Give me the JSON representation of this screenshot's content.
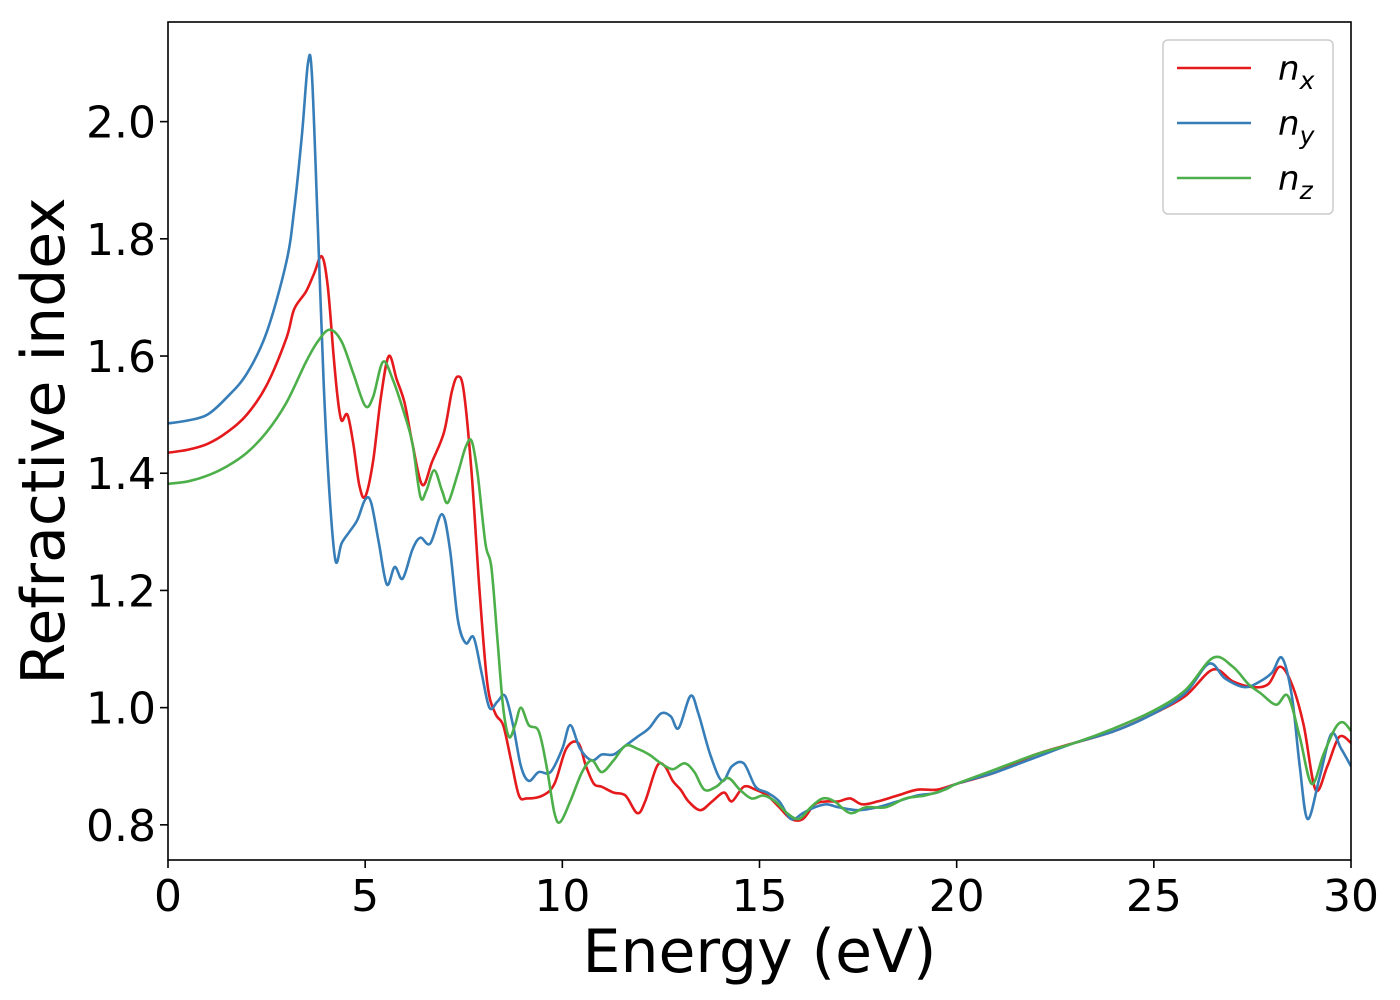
{
  "chart_data": {
    "type": "line",
    "xlabel": "Energy (eV)",
    "ylabel": "Refractive index",
    "xlim": [
      0,
      30
    ],
    "ylim": [
      0.74,
      2.17
    ],
    "xticks": [
      0,
      5,
      10,
      15,
      20,
      25,
      30
    ],
    "xtick_labels": [
      "0",
      "5",
      "10",
      "15",
      "20",
      "25",
      "30"
    ],
    "yticks": [
      0.8,
      1.0,
      1.2,
      1.4,
      1.6,
      1.8,
      2.0
    ],
    "ytick_labels": [
      "0.8",
      "1.0",
      "1.2",
      "1.4",
      "1.6",
      "1.8",
      "2.0"
    ],
    "grid": false,
    "legend_position": "top-right",
    "series": [
      {
        "name": "n_x",
        "legend_main": "n",
        "legend_sub": "x",
        "color": "#e41a1c",
        "points": [
          [
            0,
            1.435
          ],
          [
            0.5,
            1.44
          ],
          [
            1,
            1.45
          ],
          [
            1.5,
            1.47
          ],
          [
            2,
            1.5
          ],
          [
            2.5,
            1.55
          ],
          [
            3,
            1.63
          ],
          [
            3.2,
            1.68
          ],
          [
            3.5,
            1.71
          ],
          [
            3.7,
            1.74
          ],
          [
            3.9,
            1.77
          ],
          [
            4.05,
            1.72
          ],
          [
            4.2,
            1.6
          ],
          [
            4.3,
            1.53
          ],
          [
            4.4,
            1.49
          ],
          [
            4.55,
            1.5
          ],
          [
            4.7,
            1.45
          ],
          [
            4.85,
            1.38
          ],
          [
            5,
            1.36
          ],
          [
            5.2,
            1.42
          ],
          [
            5.4,
            1.53
          ],
          [
            5.6,
            1.6
          ],
          [
            5.8,
            1.56
          ],
          [
            6,
            1.52
          ],
          [
            6.2,
            1.45
          ],
          [
            6.45,
            1.38
          ],
          [
            6.7,
            1.42
          ],
          [
            7,
            1.47
          ],
          [
            7.2,
            1.54
          ],
          [
            7.35,
            1.565
          ],
          [
            7.5,
            1.54
          ],
          [
            7.7,
            1.4
          ],
          [
            7.9,
            1.2
          ],
          [
            8.1,
            1.04
          ],
          [
            8.3,
            0.99
          ],
          [
            8.5,
            0.97
          ],
          [
            8.7,
            0.91
          ],
          [
            8.9,
            0.85
          ],
          [
            9.1,
            0.845
          ],
          [
            9.5,
            0.85
          ],
          [
            9.8,
            0.87
          ],
          [
            10.1,
            0.93
          ],
          [
            10.4,
            0.94
          ],
          [
            10.6,
            0.9
          ],
          [
            10.8,
            0.87
          ],
          [
            11,
            0.865
          ],
          [
            11.3,
            0.855
          ],
          [
            11.6,
            0.85
          ],
          [
            11.9,
            0.82
          ],
          [
            12.1,
            0.84
          ],
          [
            12.4,
            0.9
          ],
          [
            12.6,
            0.9
          ],
          [
            12.8,
            0.875
          ],
          [
            13,
            0.86
          ],
          [
            13.2,
            0.84
          ],
          [
            13.5,
            0.825
          ],
          [
            13.8,
            0.84
          ],
          [
            14.1,
            0.855
          ],
          [
            14.3,
            0.84
          ],
          [
            14.6,
            0.865
          ],
          [
            14.9,
            0.86
          ],
          [
            15.2,
            0.85
          ],
          [
            15.5,
            0.83
          ],
          [
            15.8,
            0.81
          ],
          [
            16.1,
            0.81
          ],
          [
            16.4,
            0.835
          ],
          [
            16.7,
            0.84
          ],
          [
            17,
            0.84
          ],
          [
            17.3,
            0.845
          ],
          [
            17.6,
            0.835
          ],
          [
            18,
            0.84
          ],
          [
            18.5,
            0.85
          ],
          [
            19,
            0.86
          ],
          [
            19.5,
            0.86
          ],
          [
            20,
            0.87
          ],
          [
            21,
            0.89
          ],
          [
            22,
            0.92
          ],
          [
            23,
            0.94
          ],
          [
            24,
            0.96
          ],
          [
            25,
            0.99
          ],
          [
            25.8,
            1.02
          ],
          [
            26.5,
            1.065
          ],
          [
            27,
            1.045
          ],
          [
            27.5,
            1.035
          ],
          [
            27.9,
            1.04
          ],
          [
            28.2,
            1.07
          ],
          [
            28.5,
            1.04
          ],
          [
            28.8,
            0.97
          ],
          [
            29.1,
            0.86
          ],
          [
            29.4,
            0.9
          ],
          [
            29.7,
            0.95
          ],
          [
            30,
            0.94
          ]
        ]
      },
      {
        "name": "n_y",
        "legend_main": "n",
        "legend_sub": "y",
        "color": "#377eb8",
        "points": [
          [
            0,
            1.485
          ],
          [
            0.5,
            1.49
          ],
          [
            1,
            1.5
          ],
          [
            1.5,
            1.53
          ],
          [
            2,
            1.57
          ],
          [
            2.5,
            1.64
          ],
          [
            3,
            1.76
          ],
          [
            3.2,
            1.85
          ],
          [
            3.4,
            1.98
          ],
          [
            3.55,
            2.1
          ],
          [
            3.65,
            2.08
          ],
          [
            3.8,
            1.82
          ],
          [
            3.95,
            1.55
          ],
          [
            4.1,
            1.36
          ],
          [
            4.25,
            1.25
          ],
          [
            4.4,
            1.28
          ],
          [
            4.6,
            1.3
          ],
          [
            4.8,
            1.32
          ],
          [
            5,
            1.355
          ],
          [
            5.15,
            1.35
          ],
          [
            5.35,
            1.28
          ],
          [
            5.55,
            1.21
          ],
          [
            5.75,
            1.24
          ],
          [
            5.95,
            1.22
          ],
          [
            6.2,
            1.27
          ],
          [
            6.4,
            1.29
          ],
          [
            6.65,
            1.28
          ],
          [
            6.95,
            1.33
          ],
          [
            7.15,
            1.27
          ],
          [
            7.35,
            1.15
          ],
          [
            7.55,
            1.11
          ],
          [
            7.75,
            1.12
          ],
          [
            7.95,
            1.06
          ],
          [
            8.15,
            1.0
          ],
          [
            8.35,
            1.01
          ],
          [
            8.55,
            1.02
          ],
          [
            8.75,
            0.97
          ],
          [
            8.95,
            0.9
          ],
          [
            9.15,
            0.875
          ],
          [
            9.4,
            0.89
          ],
          [
            9.7,
            0.89
          ],
          [
            10,
            0.93
          ],
          [
            10.2,
            0.97
          ],
          [
            10.45,
            0.93
          ],
          [
            10.75,
            0.91
          ],
          [
            11,
            0.92
          ],
          [
            11.3,
            0.92
          ],
          [
            11.6,
            0.935
          ],
          [
            11.9,
            0.95
          ],
          [
            12.2,
            0.965
          ],
          [
            12.5,
            0.99
          ],
          [
            12.75,
            0.985
          ],
          [
            12.95,
            0.965
          ],
          [
            13.25,
            1.02
          ],
          [
            13.45,
            0.99
          ],
          [
            13.75,
            0.92
          ],
          [
            14.05,
            0.875
          ],
          [
            14.3,
            0.9
          ],
          [
            14.6,
            0.905
          ],
          [
            14.9,
            0.865
          ],
          [
            15.2,
            0.855
          ],
          [
            15.5,
            0.84
          ],
          [
            15.8,
            0.81
          ],
          [
            16.1,
            0.82
          ],
          [
            16.4,
            0.83
          ],
          [
            16.7,
            0.835
          ],
          [
            17,
            0.83
          ],
          [
            17.5,
            0.825
          ],
          [
            18,
            0.83
          ],
          [
            18.5,
            0.84
          ],
          [
            19,
            0.85
          ],
          [
            19.5,
            0.855
          ],
          [
            20,
            0.87
          ],
          [
            21,
            0.89
          ],
          [
            22,
            0.915
          ],
          [
            23,
            0.94
          ],
          [
            24,
            0.96
          ],
          [
            25,
            0.99
          ],
          [
            25.8,
            1.025
          ],
          [
            26.4,
            1.075
          ],
          [
            26.8,
            1.05
          ],
          [
            27.3,
            1.035
          ],
          [
            27.7,
            1.045
          ],
          [
            28,
            1.06
          ],
          [
            28.25,
            1.085
          ],
          [
            28.5,
            1.02
          ],
          [
            28.7,
            0.9
          ],
          [
            28.9,
            0.81
          ],
          [
            29.2,
            0.88
          ],
          [
            29.5,
            0.955
          ],
          [
            29.75,
            0.93
          ],
          [
            30,
            0.9
          ]
        ]
      },
      {
        "name": "n_z",
        "legend_main": "n",
        "legend_sub": "z",
        "color": "#4daf4a",
        "points": [
          [
            0,
            1.382
          ],
          [
            0.5,
            1.386
          ],
          [
            1,
            1.396
          ],
          [
            1.5,
            1.412
          ],
          [
            2,
            1.435
          ],
          [
            2.5,
            1.47
          ],
          [
            3,
            1.52
          ],
          [
            3.5,
            1.59
          ],
          [
            3.8,
            1.625
          ],
          [
            4.1,
            1.645
          ],
          [
            4.4,
            1.625
          ],
          [
            4.7,
            1.57
          ],
          [
            5,
            1.515
          ],
          [
            5.2,
            1.53
          ],
          [
            5.45,
            1.59
          ],
          [
            5.7,
            1.56
          ],
          [
            6,
            1.5
          ],
          [
            6.2,
            1.45
          ],
          [
            6.4,
            1.36
          ],
          [
            6.55,
            1.37
          ],
          [
            6.75,
            1.405
          ],
          [
            6.95,
            1.37
          ],
          [
            7.1,
            1.35
          ],
          [
            7.35,
            1.4
          ],
          [
            7.55,
            1.445
          ],
          [
            7.7,
            1.455
          ],
          [
            7.85,
            1.4
          ],
          [
            8.05,
            1.28
          ],
          [
            8.2,
            1.24
          ],
          [
            8.35,
            1.12
          ],
          [
            8.5,
            1.0
          ],
          [
            8.65,
            0.95
          ],
          [
            8.8,
            0.97
          ],
          [
            8.95,
            1.0
          ],
          [
            9.15,
            0.97
          ],
          [
            9.4,
            0.96
          ],
          [
            9.6,
            0.9
          ],
          [
            9.8,
            0.82
          ],
          [
            9.95,
            0.805
          ],
          [
            10.2,
            0.84
          ],
          [
            10.5,
            0.89
          ],
          [
            10.75,
            0.91
          ],
          [
            11,
            0.89
          ],
          [
            11.3,
            0.91
          ],
          [
            11.6,
            0.935
          ],
          [
            11.9,
            0.93
          ],
          [
            12.2,
            0.92
          ],
          [
            12.5,
            0.905
          ],
          [
            12.8,
            0.895
          ],
          [
            13.1,
            0.905
          ],
          [
            13.35,
            0.89
          ],
          [
            13.6,
            0.86
          ],
          [
            13.9,
            0.865
          ],
          [
            14.2,
            0.88
          ],
          [
            14.5,
            0.86
          ],
          [
            14.8,
            0.845
          ],
          [
            15.1,
            0.85
          ],
          [
            15.4,
            0.84
          ],
          [
            15.7,
            0.82
          ],
          [
            16,
            0.81
          ],
          [
            16.3,
            0.83
          ],
          [
            16.6,
            0.845
          ],
          [
            16.9,
            0.84
          ],
          [
            17.3,
            0.82
          ],
          [
            17.7,
            0.83
          ],
          [
            18.2,
            0.83
          ],
          [
            18.7,
            0.845
          ],
          [
            19.2,
            0.85
          ],
          [
            19.7,
            0.86
          ],
          [
            20,
            0.87
          ],
          [
            21,
            0.895
          ],
          [
            22,
            0.92
          ],
          [
            23,
            0.94
          ],
          [
            24,
            0.965
          ],
          [
            25,
            0.995
          ],
          [
            25.8,
            1.03
          ],
          [
            26.5,
            1.085
          ],
          [
            27,
            1.07
          ],
          [
            27.4,
            1.04
          ],
          [
            27.7,
            1.025
          ],
          [
            28.1,
            1.005
          ],
          [
            28.4,
            1.02
          ],
          [
            28.7,
            0.95
          ],
          [
            29,
            0.87
          ],
          [
            29.3,
            0.92
          ],
          [
            29.6,
            0.965
          ],
          [
            29.8,
            0.975
          ],
          [
            30,
            0.96
          ]
        ]
      }
    ]
  }
}
